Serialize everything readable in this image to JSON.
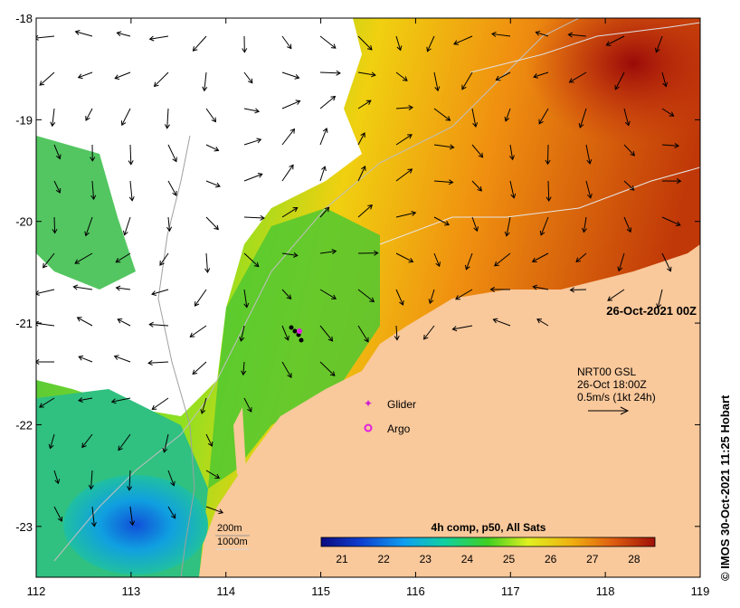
{
  "map": {
    "lon_ticks": [
      112,
      113,
      114,
      115,
      116,
      117,
      118,
      119
    ],
    "lat_ticks": [
      -18,
      -19,
      -20,
      -21,
      -22,
      -23
    ],
    "lon_range": [
      112,
      119
    ],
    "lat_range": [
      -18,
      -23.5
    ]
  },
  "timestamp": "26-Oct-2021 00Z",
  "current_info": {
    "line1": "NRT00 GSL",
    "line2": "26-Oct 18:00Z",
    "line3": "0.5m/s (1kt 24h)"
  },
  "legend": {
    "glider_label": "Glider",
    "argo_label": "Argo",
    "glider_color": "#d020d0",
    "argo_color": "#e020e0"
  },
  "isobaths": {
    "label_200": "200m",
    "label_1000": "1000m"
  },
  "colorbar": {
    "title": "4h comp, p50, All Sats",
    "ticks": [
      21,
      22,
      23,
      24,
      25,
      26,
      27,
      28
    ],
    "range": [
      20.5,
      28.5
    ]
  },
  "credit": "© IMOS 30-Oct-2021 11:25 Hobart",
  "colors": {
    "land": "#f9c89b",
    "sst_warm": "#a01008",
    "sst_cool": "#1a60e0"
  }
}
